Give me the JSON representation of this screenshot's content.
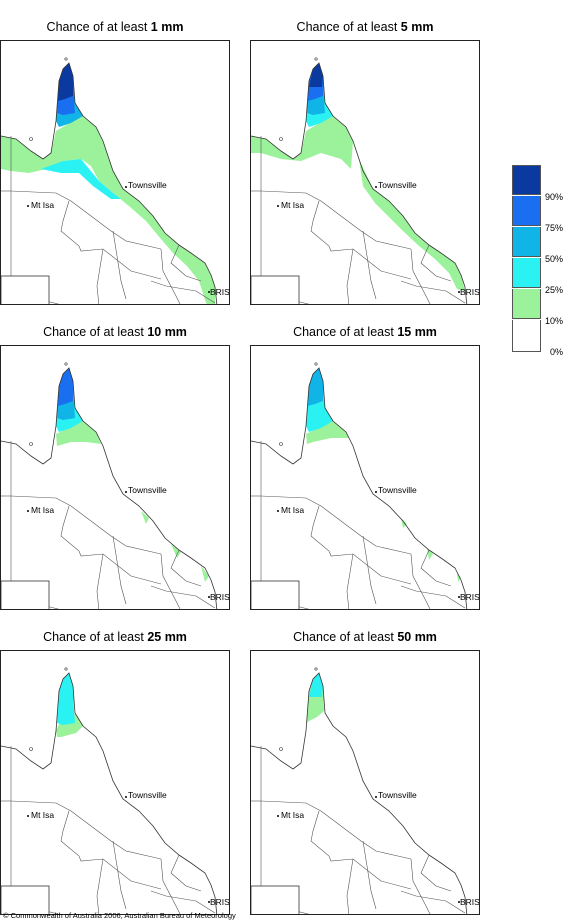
{
  "panels": [
    {
      "prefix": "Chance of at least",
      "amount": "1 mm",
      "level": 1
    },
    {
      "prefix": "Chance of at least",
      "amount": "5 mm",
      "level": 2
    },
    {
      "prefix": "Chance of at least",
      "amount": "10 mm",
      "level": 3
    },
    {
      "prefix": "Chance of at least",
      "amount": "15 mm",
      "level": 4
    },
    {
      "prefix": "Chance of at least",
      "amount": "25 mm",
      "level": 5
    },
    {
      "prefix": "Chance of at least",
      "amount": "50 mm",
      "level": 6
    }
  ],
  "places": {
    "townsville": "Townsville",
    "mount_isa": "Mt Isa",
    "brisbane": "BRIS"
  },
  "legend": {
    "ticks": [
      "90%",
      "75%",
      "50%",
      "25%",
      "10%",
      "0%"
    ],
    "colors": [
      "#0a3aa0",
      "#1a6ff0",
      "#11b4e6",
      "#2af2f2",
      "#9bf29b",
      "#ffffff"
    ]
  },
  "copyright": "© Commonwealth of Australia 2006, Australian Bureau of Meteorology"
}
